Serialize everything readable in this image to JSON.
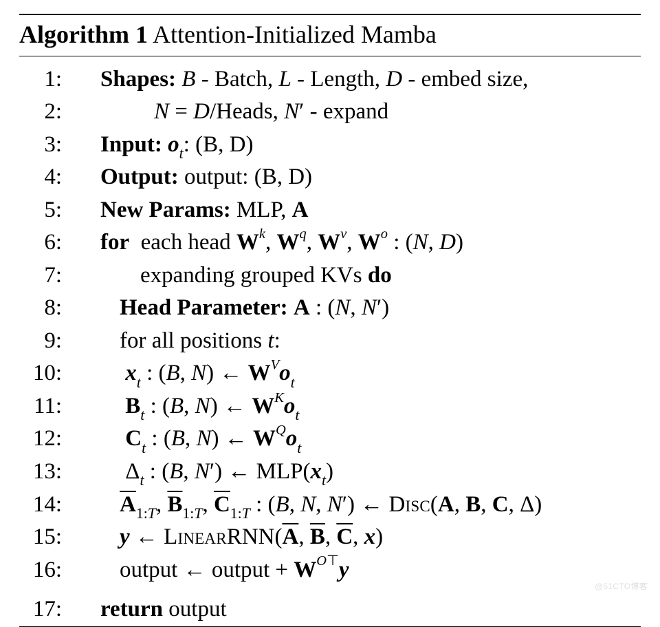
{
  "algorithm": {
    "number_label": "Algorithm 1",
    "title": "Attention-Initialized Mamba",
    "title_fontsize": 36,
    "body_fontsize": 33,
    "font_family": "Palatino / serif",
    "rule_color": "#000000",
    "background_color": "#ffffff",
    "text_color": "#000000",
    "lines": [
      {
        "n": "1:",
        "indent": "ind1",
        "html": "<span class='b'>Shapes:</span> <span class='it'>B</span> - Batch, <span class='it'>L</span> - Length, <span class='it'>D</span> - embed size,"
      },
      {
        "n": "2:",
        "indent": "indShapes2",
        "html": "<span class='it'>N</span> = <span class='it'>D</span>/Heads, <span class='it'>N</span>′ - expand"
      },
      {
        "n": "3:",
        "indent": "ind1",
        "html": "<span class='b'>Input:</span> <span class='b it'>o</span><sub class='it'>t</sub>: (B, D)"
      },
      {
        "n": "4:",
        "indent": "ind1",
        "html": "<span class='b'>Output:</span> output: (B, D)"
      },
      {
        "n": "5:",
        "indent": "ind1",
        "html": "<span class='b'>New Params:</span> MLP, <span class='b'>A</span>"
      },
      {
        "n": "6:",
        "indent": "ind1",
        "html": "<span class='b'>for</span>&nbsp; each head <span class='b'>W</span><sup class='it'>k</sup>, <span class='b'>W</span><sup class='it'>q</sup>, <span class='b'>W</span><sup class='it'>v</sup>, <span class='b'>W</span><sup class='it'>o</sup> : (<span class='it'>N</span>, <span class='it'>D</span>)"
      },
      {
        "n": "7:",
        "indent": "indExpand",
        "html": "expanding grouped KVs <span class='b'>do</span>"
      },
      {
        "n": "8:",
        "indent": "ind2",
        "html": "<span class='b'>Head Parameter:</span> <span class='b'>A</span> : (<span class='it'>N</span>, <span class='it'>N</span>′)"
      },
      {
        "n": "9:",
        "indent": "ind2",
        "html": "for all positions <span class='it'>t</span>:"
      },
      {
        "n": "10:",
        "indent": "ind2",
        "html": "&nbsp;<span class='b it'>x</span><sub class='it'>t</sub> : (<span class='it'>B</span>, <span class='it'>N</span>) ← <span class='b'>W</span><sup class='it'>V</sup><span class='b it'>o</span><sub class='it'>t</sub>"
      },
      {
        "n": "11:",
        "indent": "ind2",
        "html": "&nbsp;<span class='b'>B</span><sub class='it'>t</sub> : (<span class='it'>B</span>, <span class='it'>N</span>) ← <span class='b'>W</span><sup class='it'>K</sup><span class='b it'>o</span><sub class='it'>t</sub>"
      },
      {
        "n": "12:",
        "indent": "ind2",
        "html": "&nbsp;<span class='b'>C</span><sub class='it'>t</sub> : (<span class='it'>B</span>, <span class='it'>N</span>) ← <span class='b'>W</span><sup class='it'>Q</sup><span class='b it'>o</span><sub class='it'>t</sub>"
      },
      {
        "n": "13:",
        "indent": "ind2",
        "html": "&nbsp;Δ<sub class='it'>t</sub> : (<span class='it'>B</span>, <span class='it'>N</span>′) ← MLP(<span class='b it'>x</span><sub class='it'>t</sub>)"
      },
      {
        "n": "14:",
        "indent": "ind2",
        "html": "<span class='ov'><span class='b'>A</span></span><sub>1:<span class='it'>T</span></sub>, <span class='ov'><span class='b'>B</span></span><sub>1:<span class='it'>T</span></sub>, <span class='ov'><span class='b'>C</span></span><sub>1:<span class='it'>T</span></sub> : (<span class='it'>B</span>, <span class='it'>N</span>, <span class='it'>N</span>′) ← <span class='sc'>Disc</span>(<span class='b'>A</span>, <span class='b'>B</span>, <span class='b'>C</span>, Δ)"
      },
      {
        "n": "15:",
        "indent": "ind2",
        "html": "<span class='b it'>y</span> ← <span class='sc'>Linear</span>RNN(<span class='ov'><span class='b'>A</span></span>, <span class='ov'><span class='b'>B</span></span>, <span class='ov'><span class='b'>C</span></span>, <span class='b it'>x</span>)"
      },
      {
        "n": "16:",
        "indent": "ind2",
        "html": "output ← output + <span class='b'>W</span><sup><span class='it'>O</span>⊤</sup><span class='b it'>y</span>"
      },
      {
        "n": "17:",
        "indent": "ind1",
        "html": "<span class='b'>return</span> output"
      }
    ]
  },
  "watermark": "@51CTO博客"
}
